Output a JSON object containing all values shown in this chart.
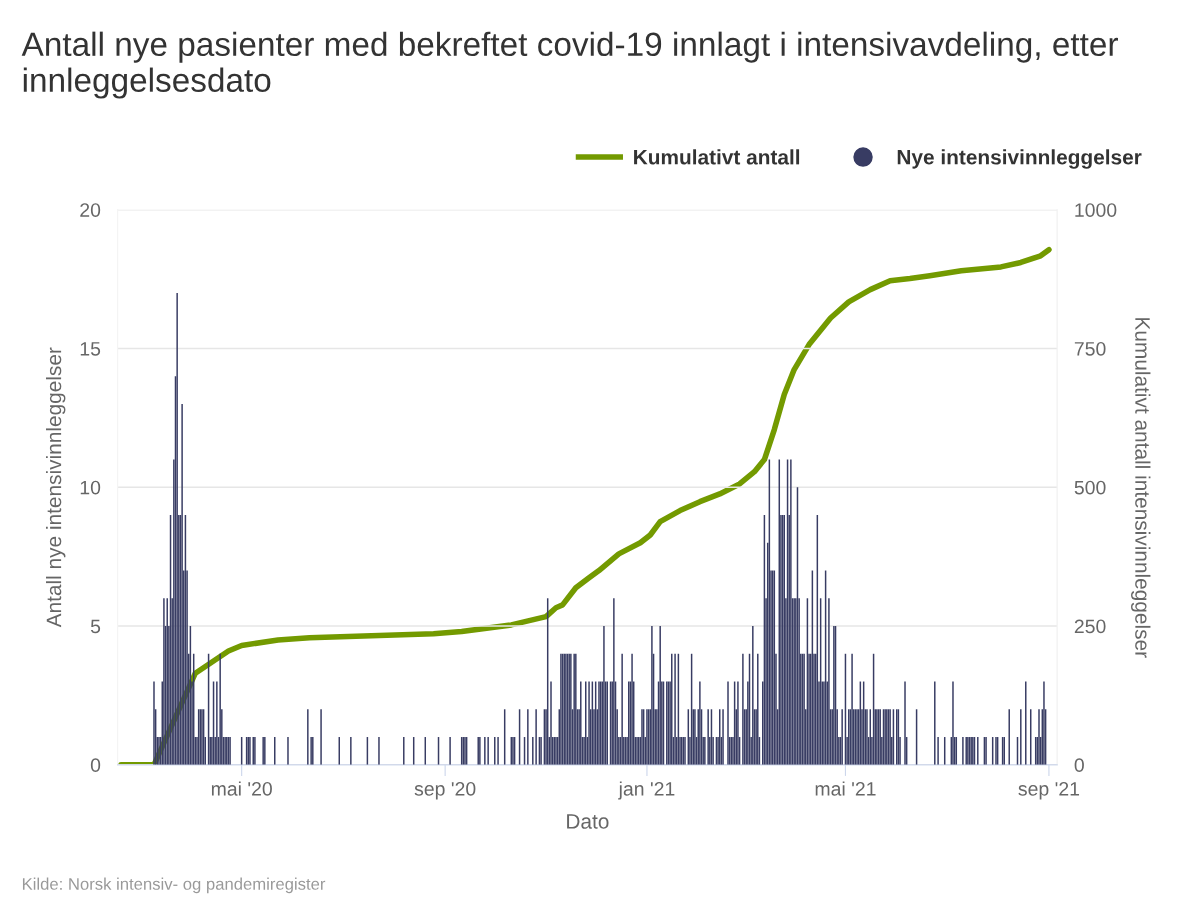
{
  "chart_data": {
    "type": "bar",
    "title": "Antall nye pasienter med bekreftet covid-19 innlagt i intensivavdeling, etter innleggelsesdato",
    "xlabel": "Dato",
    "ylabel": "Antall nye intensivinnleggelser",
    "y2label": "Kumulativt antall intensivinnleggelser",
    "annotations": [
      "Kilde: Norsk intensiv- og pandemiregister"
    ],
    "xlim": [
      "2020-02-16",
      "2021-09-06"
    ],
    "xticks": [
      {
        "value": "2020-05-01",
        "label": "mai '20"
      },
      {
        "value": "2020-09-01",
        "label": "sep '20"
      },
      {
        "value": "2021-01-01",
        "label": "jan '21"
      },
      {
        "value": "2021-05-01",
        "label": "mai '21"
      },
      {
        "value": "2021-09-01",
        "label": "sep '21"
      }
    ],
    "ylim": [
      0,
      20
    ],
    "yticks": [
      0,
      5,
      10,
      15,
      20
    ],
    "y2lim": [
      0,
      1000
    ],
    "y2ticks": [
      0,
      250,
      500,
      750,
      1000
    ],
    "grid": "y",
    "legend": "top right",
    "series": [
      {
        "name": "Kumulativt antall",
        "type": "line",
        "axis": "y2",
        "color": "#739a00",
        "marker": "none",
        "line_style": "solid",
        "x": [
          "2020-02-18",
          "2020-03-09",
          "2020-04-03",
          "2020-04-23",
          "2020-05-01",
          "2020-05-23",
          "2020-06-11",
          "2020-08-25",
          "2020-09-11",
          "2020-10-11",
          "2020-11-01",
          "2020-11-07",
          "2020-11-11",
          "2020-11-19",
          "2020-11-27",
          "2020-12-03",
          "2020-12-15",
          "2020-12-28",
          "2021-01-03",
          "2021-01-09",
          "2021-01-21",
          "2021-02-02",
          "2021-02-14",
          "2021-02-26",
          "2021-03-07",
          "2021-03-13",
          "2021-03-19",
          "2021-03-25",
          "2021-03-31",
          "2021-04-09",
          "2021-04-22",
          "2021-05-03",
          "2021-05-16",
          "2021-05-28",
          "2021-06-09",
          "2021-06-21",
          "2021-07-10",
          "2021-08-03",
          "2021-08-15",
          "2021-08-27",
          "2021-09-01"
        ],
        "values": [
          0,
          0,
          165,
          205,
          215,
          225,
          229,
          236,
          240,
          252,
          267,
          283,
          288,
          319,
          337,
          350,
          380,
          400,
          414,
          438,
          458,
          474,
          488,
          506,
          528,
          550,
          604,
          667,
          712,
          757,
          805,
          834,
          856,
          872,
          876,
          881,
          890,
          897,
          905,
          917,
          928
        ]
      },
      {
        "name": "Nye intensivinnleggelser",
        "axis": "y",
        "color": "#383c63",
        "x": [
          "2020-03-09",
          "2020-03-10",
          "2020-03-11",
          "2020-03-12",
          "2020-03-13",
          "2020-03-14",
          "2020-03-15",
          "2020-03-16",
          "2020-03-17",
          "2020-03-18",
          "2020-03-19",
          "2020-03-20",
          "2020-03-21",
          "2020-03-22",
          "2020-03-23",
          "2020-03-24",
          "2020-03-25",
          "2020-03-26",
          "2020-03-27",
          "2020-03-28",
          "2020-03-29",
          "2020-03-30",
          "2020-03-31",
          "2020-04-01",
          "2020-04-02",
          "2020-04-03",
          "2020-04-04",
          "2020-04-05",
          "2020-04-06",
          "2020-04-07",
          "2020-04-08",
          "2020-04-09",
          "2020-04-11",
          "2020-04-12",
          "2020-04-13",
          "2020-04-14",
          "2020-04-15",
          "2020-04-16",
          "2020-04-17",
          "2020-04-18",
          "2020-04-19",
          "2020-04-20",
          "2020-04-21",
          "2020-04-22",
          "2020-04-23",
          "2020-04-24",
          "2020-05-01",
          "2020-05-04",
          "2020-05-05",
          "2020-05-06",
          "2020-05-08",
          "2020-05-09",
          "2020-05-14",
          "2020-05-15",
          "2020-05-21",
          "2020-05-29",
          "2020-06-10",
          "2020-06-12",
          "2020-06-13",
          "2020-06-18",
          "2020-06-29",
          "2020-07-06",
          "2020-07-16",
          "2020-07-23",
          "2020-08-07",
          "2020-08-13",
          "2020-08-20",
          "2020-08-28",
          "2020-09-04",
          "2020-09-11",
          "2020-09-12",
          "2020-09-13",
          "2020-09-14",
          "2020-09-21",
          "2020-09-22",
          "2020-09-25",
          "2020-09-27",
          "2020-10-01",
          "2020-10-03",
          "2020-10-07",
          "2020-10-11",
          "2020-10-12",
          "2020-10-13",
          "2020-10-16",
          "2020-10-19",
          "2020-10-21",
          "2020-10-24",
          "2020-10-26",
          "2020-10-28",
          "2020-10-29",
          "2020-10-31",
          "2020-11-01",
          "2020-11-02",
          "2020-11-03",
          "2020-11-04",
          "2020-11-05",
          "2020-11-06",
          "2020-11-07",
          "2020-11-08",
          "2020-11-09",
          "2020-11-10",
          "2020-11-11",
          "2020-11-12",
          "2020-11-13",
          "2020-11-14",
          "2020-11-15",
          "2020-11-16",
          "2020-11-17",
          "2020-11-18",
          "2020-11-19",
          "2020-11-20",
          "2020-11-21",
          "2020-11-22",
          "2020-11-23",
          "2020-11-24",
          "2020-11-25",
          "2020-11-26",
          "2020-11-27",
          "2020-11-28",
          "2020-11-29",
          "2020-11-30",
          "2020-12-01",
          "2020-12-02",
          "2020-12-03",
          "2020-12-04",
          "2020-12-05",
          "2020-12-06",
          "2020-12-07",
          "2020-12-08",
          "2020-12-10",
          "2020-12-11",
          "2020-12-12",
          "2020-12-13",
          "2020-12-14",
          "2020-12-15",
          "2020-12-16",
          "2020-12-17",
          "2020-12-18",
          "2020-12-19",
          "2020-12-20",
          "2020-12-21",
          "2020-12-22",
          "2020-12-23",
          "2020-12-24",
          "2020-12-25",
          "2020-12-26",
          "2020-12-27",
          "2020-12-28",
          "2020-12-29",
          "2020-12-30",
          "2020-12-31",
          "2021-01-01",
          "2021-01-02",
          "2021-01-03",
          "2021-01-04",
          "2021-01-05",
          "2021-01-06",
          "2021-01-07",
          "2021-01-08",
          "2021-01-09",
          "2021-01-10",
          "2021-01-11",
          "2021-01-13",
          "2021-01-14",
          "2021-01-15",
          "2021-01-16",
          "2021-01-17",
          "2021-01-18",
          "2021-01-19",
          "2021-01-20",
          "2021-01-21",
          "2021-01-22",
          "2021-01-23",
          "2021-01-24",
          "2021-01-26",
          "2021-01-27",
          "2021-01-28",
          "2021-01-29",
          "2021-01-30",
          "2021-01-31",
          "2021-02-01",
          "2021-02-02",
          "2021-02-03",
          "2021-02-04",
          "2021-02-05",
          "2021-02-07",
          "2021-02-08",
          "2021-02-09",
          "2021-02-10",
          "2021-02-12",
          "2021-02-13",
          "2021-02-14",
          "2021-02-15",
          "2021-02-16",
          "2021-02-19",
          "2021-02-20",
          "2021-02-21",
          "2021-02-22",
          "2021-02-23",
          "2021-02-24",
          "2021-02-25",
          "2021-02-26",
          "2021-02-28",
          "2021-03-01",
          "2021-03-02",
          "2021-03-03",
          "2021-03-04",
          "2021-03-05",
          "2021-03-06",
          "2021-03-07",
          "2021-03-08",
          "2021-03-09",
          "2021-03-10",
          "2021-03-12",
          "2021-03-13",
          "2021-03-14",
          "2021-03-15",
          "2021-03-16",
          "2021-03-17",
          "2021-03-18",
          "2021-03-19",
          "2021-03-20",
          "2021-03-21",
          "2021-03-22",
          "2021-03-23",
          "2021-03-24",
          "2021-03-25",
          "2021-03-26",
          "2021-03-27",
          "2021-03-28",
          "2021-03-29",
          "2021-03-30",
          "2021-03-31",
          "2021-04-01",
          "2021-04-02",
          "2021-04-03",
          "2021-04-04",
          "2021-04-05",
          "2021-04-06",
          "2021-04-07",
          "2021-04-08",
          "2021-04-09",
          "2021-04-10",
          "2021-04-11",
          "2021-04-12",
          "2021-04-13",
          "2021-04-14",
          "2021-04-15",
          "2021-04-16",
          "2021-04-17",
          "2021-04-18",
          "2021-04-19",
          "2021-04-20",
          "2021-04-21",
          "2021-04-22",
          "2021-04-23",
          "2021-04-24",
          "2021-04-25",
          "2021-04-26",
          "2021-04-27",
          "2021-04-28",
          "2021-04-29",
          "2021-05-01",
          "2021-05-02",
          "2021-05-03",
          "2021-05-04",
          "2021-05-05",
          "2021-05-06",
          "2021-05-07",
          "2021-05-08",
          "2021-05-09",
          "2021-05-10",
          "2021-05-11",
          "2021-05-12",
          "2021-05-13",
          "2021-05-14",
          "2021-05-15",
          "2021-05-16",
          "2021-05-17",
          "2021-05-18",
          "2021-05-19",
          "2021-05-20",
          "2021-05-21",
          "2021-05-22",
          "2021-05-23",
          "2021-05-24",
          "2021-05-25",
          "2021-05-26",
          "2021-05-27",
          "2021-05-28",
          "2021-05-29",
          "2021-05-30",
          "2021-06-01",
          "2021-06-02",
          "2021-06-03",
          "2021-06-06",
          "2021-06-07",
          "2021-06-13",
          "2021-06-24",
          "2021-06-26",
          "2021-06-30",
          "2021-07-04",
          "2021-07-05",
          "2021-07-06",
          "2021-07-07",
          "2021-07-11",
          "2021-07-13",
          "2021-07-14",
          "2021-07-15",
          "2021-07-16",
          "2021-07-17",
          "2021-07-18",
          "2021-07-20",
          "2021-07-24",
          "2021-07-25",
          "2021-07-29",
          "2021-07-31",
          "2021-08-01",
          "2021-08-04",
          "2021-08-05",
          "2021-08-08",
          "2021-08-13",
          "2021-08-15",
          "2021-08-18",
          "2021-08-21",
          "2021-08-24",
          "2021-08-25",
          "2021-08-26",
          "2021-08-27",
          "2021-08-28",
          "2021-08-29",
          "2021-08-30"
        ],
        "values": [
          3,
          2,
          1,
          1,
          1,
          3,
          6,
          5,
          6,
          5,
          9,
          6,
          11,
          14,
          17,
          9,
          9,
          13,
          7,
          9,
          7,
          4,
          5,
          3,
          4,
          1,
          1,
          2,
          2,
          2,
          2,
          1,
          4,
          1,
          1,
          3,
          1,
          3,
          1,
          4,
          2,
          1,
          1,
          1,
          1,
          1,
          1,
          1,
          1,
          1,
          1,
          1,
          1,
          1,
          1,
          1,
          2,
          1,
          1,
          2,
          1,
          1,
          1,
          1,
          1,
          1,
          1,
          1,
          1,
          1,
          1,
          1,
          1,
          1,
          1,
          1,
          1,
          1,
          1,
          2,
          1,
          1,
          1,
          2,
          1,
          2,
          1,
          2,
          1,
          1,
          2,
          2,
          6,
          1,
          3,
          1,
          1,
          1,
          1,
          2,
          4,
          4,
          4,
          4,
          4,
          4,
          4,
          2,
          4,
          4,
          2,
          2,
          3,
          1,
          1,
          3,
          1,
          3,
          2,
          3,
          2,
          3,
          2,
          3,
          3,
          3,
          5,
          3,
          3,
          3,
          3,
          6,
          3,
          2,
          1,
          1,
          4,
          1,
          1,
          1,
          3,
          3,
          4,
          3,
          1,
          1,
          1,
          1,
          2,
          2,
          1,
          2,
          2,
          2,
          5,
          4,
          2,
          2,
          3,
          5,
          3,
          3,
          3,
          3,
          3,
          4,
          1,
          4,
          1,
          4,
          1,
          1,
          1,
          1,
          2,
          1,
          4,
          2,
          2,
          1,
          2,
          3,
          2,
          1,
          1,
          2,
          1,
          2,
          1,
          1,
          1,
          2,
          1,
          2,
          3,
          1,
          1,
          1,
          3,
          2,
          3,
          1,
          4,
          2,
          2,
          3,
          4,
          1,
          5,
          2,
          2,
          4,
          1,
          3,
          9,
          6,
          8,
          11,
          7,
          7,
          7,
          4,
          2,
          11,
          9,
          9,
          9,
          6,
          11,
          9,
          11,
          6,
          6,
          6,
          10,
          6,
          4,
          4,
          4,
          2,
          6,
          4,
          4,
          7,
          4,
          4,
          9,
          3,
          6,
          3,
          3,
          7,
          3,
          6,
          2,
          2,
          5,
          5,
          2,
          1,
          1,
          2,
          4,
          1,
          2,
          2,
          4,
          2,
          2,
          2,
          2,
          3,
          2,
          3,
          2,
          2,
          1,
          2,
          1,
          4,
          2,
          2,
          2,
          2,
          1,
          2,
          2,
          2,
          2,
          2,
          1,
          2,
          2,
          2,
          1,
          3,
          1,
          2,
          3,
          1,
          1,
          1,
          3,
          1,
          1,
          1,
          1,
          1,
          1,
          1,
          1,
          1,
          1,
          1,
          1,
          1,
          1,
          1,
          1,
          1,
          2,
          1,
          2,
          3,
          2,
          1,
          1,
          2,
          1,
          2,
          3,
          2
        ]
      }
    ]
  }
}
